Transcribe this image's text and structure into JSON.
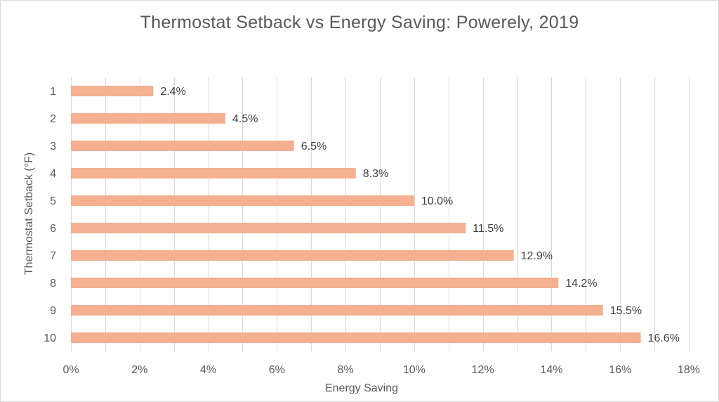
{
  "chart_data": {
    "type": "bar",
    "orientation": "horizontal",
    "title": "Thermostat Setback vs Energy Saving: Powerely, 2019",
    "xlabel": "Energy Saving",
    "ylabel": "Thermostat Setback (°F)",
    "categories": [
      "1",
      "2",
      "3",
      "4",
      "5",
      "6",
      "7",
      "8",
      "9",
      "10"
    ],
    "values": [
      2.4,
      4.5,
      6.5,
      8.3,
      10.0,
      11.5,
      12.9,
      14.2,
      15.5,
      16.6
    ],
    "data_labels": [
      "2.4%",
      "4.5%",
      "6.5%",
      "8.3%",
      "10.0%",
      "11.5%",
      "12.9%",
      "14.2%",
      "15.5%",
      "16.6%"
    ],
    "xlim": [
      0,
      18
    ],
    "x_ticks": [
      "0%",
      "2%",
      "4%",
      "6%",
      "8%",
      "10%",
      "12%",
      "14%",
      "16%",
      "18%"
    ],
    "grid": true,
    "legend": "none",
    "colors": {
      "bar": "#f4b090",
      "grid": "#d9d9d9",
      "text": "#595959"
    }
  }
}
